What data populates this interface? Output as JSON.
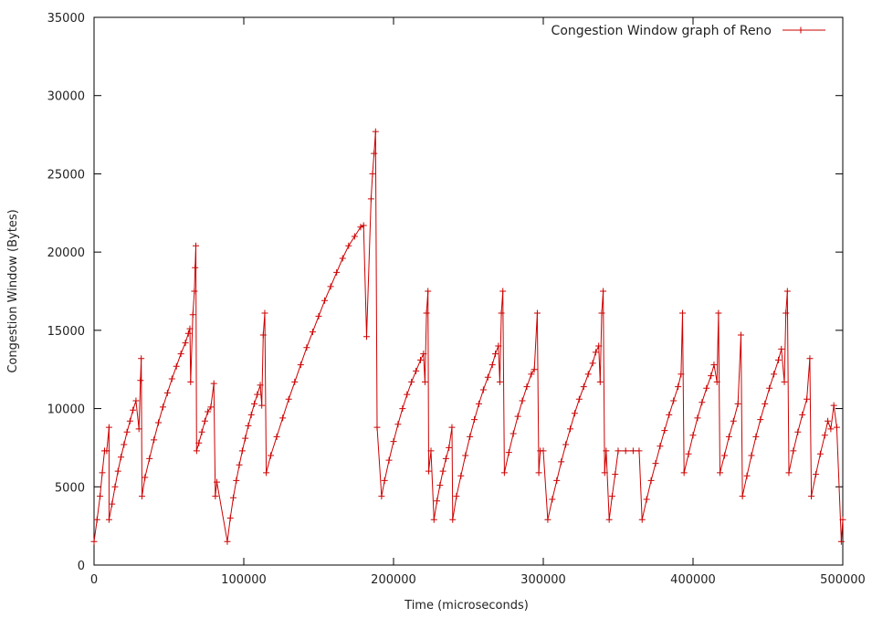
{
  "chart_data": {
    "type": "line",
    "xlabel": "Time (microseconds)",
    "ylabel": "Congestion Window (Bytes)",
    "xlim": [
      0,
      500000
    ],
    "ylim": [
      0,
      35000
    ],
    "x_ticks": [
      0,
      100000,
      200000,
      300000,
      400000,
      500000
    ],
    "x_tick_labels": [
      "0",
      "100000",
      "200000",
      "300000",
      "400000",
      "500000"
    ],
    "y_ticks": [
      0,
      5000,
      10000,
      15000,
      20000,
      25000,
      30000,
      35000
    ],
    "y_tick_labels": [
      "0",
      "5000",
      "10000",
      "15000",
      "20000",
      "25000",
      "30000",
      "35000"
    ],
    "grid": false,
    "legend_position": "top-right",
    "line_color": "#cc0000",
    "series": [
      {
        "name": "Congestion Window graph of Reno",
        "marker": "plus",
        "points": [
          [
            0,
            1500
          ],
          [
            2000,
            2900
          ],
          [
            4000,
            4400
          ],
          [
            5500,
            5900
          ],
          [
            7000,
            7300
          ],
          [
            8500,
            7300
          ],
          [
            10000,
            8800
          ],
          [
            10000,
            2900
          ],
          [
            12000,
            3900
          ],
          [
            14000,
            5000
          ],
          [
            16000,
            6000
          ],
          [
            18000,
            6900
          ],
          [
            20000,
            7700
          ],
          [
            22000,
            8500
          ],
          [
            24000,
            9200
          ],
          [
            26000,
            9900
          ],
          [
            28000,
            10500
          ],
          [
            30000,
            8700
          ],
          [
            31000,
            11800
          ],
          [
            31500,
            13200
          ],
          [
            32000,
            4400
          ],
          [
            34000,
            5600
          ],
          [
            37000,
            6800
          ],
          [
            40000,
            8000
          ],
          [
            43000,
            9100
          ],
          [
            46000,
            10100
          ],
          [
            49000,
            11000
          ],
          [
            52000,
            11900
          ],
          [
            55000,
            12700
          ],
          [
            58000,
            13500
          ],
          [
            61000,
            14200
          ],
          [
            63000,
            14800
          ],
          [
            64000,
            15100
          ],
          [
            64500,
            11700
          ],
          [
            66000,
            16000
          ],
          [
            67000,
            17500
          ],
          [
            67500,
            19000
          ],
          [
            68000,
            20400
          ],
          [
            68500,
            7300
          ],
          [
            70000,
            7800
          ],
          [
            72000,
            8500
          ],
          [
            74000,
            9200
          ],
          [
            76000,
            9800
          ],
          [
            78000,
            10100
          ],
          [
            80000,
            11600
          ],
          [
            81000,
            4400
          ],
          [
            82000,
            5300
          ],
          [
            89000,
            1500
          ],
          [
            91000,
            3000
          ],
          [
            93000,
            4300
          ],
          [
            95000,
            5400
          ],
          [
            97000,
            6400
          ],
          [
            99000,
            7300
          ],
          [
            101000,
            8100
          ],
          [
            103000,
            8900
          ],
          [
            105000,
            9600
          ],
          [
            107000,
            10300
          ],
          [
            109000,
            10900
          ],
          [
            111000,
            11500
          ],
          [
            112000,
            10200
          ],
          [
            113000,
            14700
          ],
          [
            114000,
            16100
          ],
          [
            115000,
            5900
          ],
          [
            118000,
            7000
          ],
          [
            122000,
            8200
          ],
          [
            126000,
            9400
          ],
          [
            130000,
            10600
          ],
          [
            134000,
            11700
          ],
          [
            138000,
            12800
          ],
          [
            142000,
            13900
          ],
          [
            146000,
            14900
          ],
          [
            150000,
            15900
          ],
          [
            154000,
            16900
          ],
          [
            158000,
            17800
          ],
          [
            162000,
            18700
          ],
          [
            166000,
            19600
          ],
          [
            170000,
            20400
          ],
          [
            174000,
            21000
          ],
          [
            178000,
            21600
          ],
          [
            180000,
            21700
          ],
          [
            182000,
            14600
          ],
          [
            185000,
            23400
          ],
          [
            186000,
            25000
          ],
          [
            187000,
            26300
          ],
          [
            188000,
            27700
          ],
          [
            189000,
            8800
          ],
          [
            192000,
            4400
          ],
          [
            194000,
            5400
          ],
          [
            197000,
            6700
          ],
          [
            200000,
            7900
          ],
          [
            203000,
            9000
          ],
          [
            206000,
            10000
          ],
          [
            209000,
            10900
          ],
          [
            212000,
            11700
          ],
          [
            215000,
            12400
          ],
          [
            218000,
            13100
          ],
          [
            220000,
            13500
          ],
          [
            221000,
            11700
          ],
          [
            222000,
            16100
          ],
          [
            223000,
            17500
          ],
          [
            223500,
            6000
          ],
          [
            225000,
            7300
          ],
          [
            227000,
            2900
          ],
          [
            229000,
            4100
          ],
          [
            231000,
            5100
          ],
          [
            233000,
            6000
          ],
          [
            235000,
            6800
          ],
          [
            237000,
            7500
          ],
          [
            239000,
            8800
          ],
          [
            239500,
            2900
          ],
          [
            242000,
            4400
          ],
          [
            245000,
            5700
          ],
          [
            248000,
            7000
          ],
          [
            251000,
            8200
          ],
          [
            254000,
            9300
          ],
          [
            257000,
            10300
          ],
          [
            260000,
            11200
          ],
          [
            263000,
            12000
          ],
          [
            266000,
            12800
          ],
          [
            268000,
            13500
          ],
          [
            270000,
            14000
          ],
          [
            271000,
            11700
          ],
          [
            272000,
            16100
          ],
          [
            273000,
            17500
          ],
          [
            274000,
            5900
          ],
          [
            277000,
            7200
          ],
          [
            280000,
            8400
          ],
          [
            283000,
            9500
          ],
          [
            286000,
            10500
          ],
          [
            289000,
            11400
          ],
          [
            292000,
            12200
          ],
          [
            294000,
            12500
          ],
          [
            296000,
            16100
          ],
          [
            297000,
            5900
          ],
          [
            298000,
            7300
          ],
          [
            300000,
            7300
          ],
          [
            303000,
            2900
          ],
          [
            306000,
            4200
          ],
          [
            309000,
            5400
          ],
          [
            312000,
            6600
          ],
          [
            315000,
            7700
          ],
          [
            318000,
            8700
          ],
          [
            321000,
            9700
          ],
          [
            324000,
            10600
          ],
          [
            327000,
            11400
          ],
          [
            330000,
            12200
          ],
          [
            333000,
            12900
          ],
          [
            335000,
            13600
          ],
          [
            337000,
            14000
          ],
          [
            338000,
            11700
          ],
          [
            339000,
            16100
          ],
          [
            340000,
            17500
          ],
          [
            341000,
            5900
          ],
          [
            342000,
            7300
          ],
          [
            344000,
            2900
          ],
          [
            346000,
            4400
          ],
          [
            348000,
            5800
          ],
          [
            350000,
            7300
          ],
          [
            355000,
            7300
          ],
          [
            360000,
            7300
          ],
          [
            364000,
            7300
          ],
          [
            366000,
            2900
          ],
          [
            369000,
            4200
          ],
          [
            372000,
            5400
          ],
          [
            375000,
            6500
          ],
          [
            378000,
            7600
          ],
          [
            381000,
            8600
          ],
          [
            384000,
            9600
          ],
          [
            387000,
            10500
          ],
          [
            390000,
            11400
          ],
          [
            392000,
            12200
          ],
          [
            393000,
            16100
          ],
          [
            394000,
            5900
          ],
          [
            397000,
            7100
          ],
          [
            400000,
            8300
          ],
          [
            403000,
            9400
          ],
          [
            406000,
            10400
          ],
          [
            409000,
            11300
          ],
          [
            412000,
            12100
          ],
          [
            414000,
            12800
          ],
          [
            416000,
            11700
          ],
          [
            417000,
            16100
          ],
          [
            418000,
            5900
          ],
          [
            421000,
            7000
          ],
          [
            424000,
            8200
          ],
          [
            427000,
            9200
          ],
          [
            430000,
            10300
          ],
          [
            432000,
            14700
          ],
          [
            433000,
            4400
          ],
          [
            436000,
            5700
          ],
          [
            439000,
            7000
          ],
          [
            442000,
            8200
          ],
          [
            445000,
            9300
          ],
          [
            448000,
            10300
          ],
          [
            451000,
            11300
          ],
          [
            454000,
            12200
          ],
          [
            457000,
            13100
          ],
          [
            459000,
            13800
          ],
          [
            461000,
            11700
          ],
          [
            462000,
            16100
          ],
          [
            463000,
            17500
          ],
          [
            464000,
            5900
          ],
          [
            467000,
            7300
          ],
          [
            470000,
            8500
          ],
          [
            473000,
            9600
          ],
          [
            476000,
            10600
          ],
          [
            478000,
            13200
          ],
          [
            479000,
            4400
          ],
          [
            482000,
            5800
          ],
          [
            485000,
            7100
          ],
          [
            488000,
            8300
          ],
          [
            490000,
            9200
          ],
          [
            492000,
            8700
          ],
          [
            494000,
            10200
          ],
          [
            496000,
            8800
          ],
          [
            499000,
            1500
          ],
          [
            500000,
            2900
          ]
        ]
      }
    ]
  }
}
